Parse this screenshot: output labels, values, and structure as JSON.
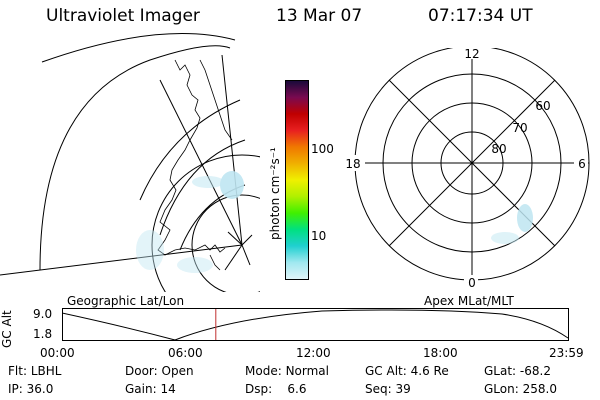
{
  "header": {
    "instrument": "Ultraviolet Imager",
    "date": "13 Mar 07",
    "time": "07:17:34 UT"
  },
  "colorbar": {
    "unit_label": "photon cm⁻²s⁻¹",
    "ticks": [
      "100",
      "10"
    ],
    "colors": [
      "#1a0a3a",
      "#7a0a50",
      "#c00000",
      "#e82020",
      "#f07800",
      "#f0b000",
      "#f0f000",
      "#b0f000",
      "#40f000",
      "#00e080",
      "#20d0d0",
      "#a0e8f0",
      "#e0f4f8"
    ]
  },
  "geographic_panel": {
    "label": "Geographic Lat/Lon"
  },
  "polar_panel": {
    "label": "Apex MLat/MLT",
    "mlt_labels": {
      "top": "12",
      "bottom": "0",
      "left": "18",
      "right": "6"
    },
    "lat_labels": [
      "60",
      "70",
      "80"
    ]
  },
  "timeline": {
    "axis_label": "GC Alt",
    "y_ticks": [
      "9.0",
      "1.8"
    ],
    "x_ticks": [
      "00:00",
      "06:00",
      "12:00",
      "18:00",
      "23:59"
    ],
    "current_time_fraction": 0.304,
    "marker_color": "#c03030"
  },
  "info": {
    "row1": [
      {
        "label": "Flt:",
        "value": "LBHL"
      },
      {
        "label": "Door:",
        "value": "Open"
      },
      {
        "label": "Mode:",
        "value": "Normal"
      },
      {
        "label": "GC Alt:",
        "value": "4.6 Re"
      },
      {
        "label": "GLat:",
        "value": "-68.2"
      }
    ],
    "row2": [
      {
        "label": "IP:",
        "value": "36.0"
      },
      {
        "label": "Gain:",
        "value": "14"
      },
      {
        "label": "Dsp:",
        "value": "6.6"
      },
      {
        "label": "Seq:",
        "value": "39"
      },
      {
        "label": "GLon:",
        "value": "258.0"
      }
    ]
  }
}
